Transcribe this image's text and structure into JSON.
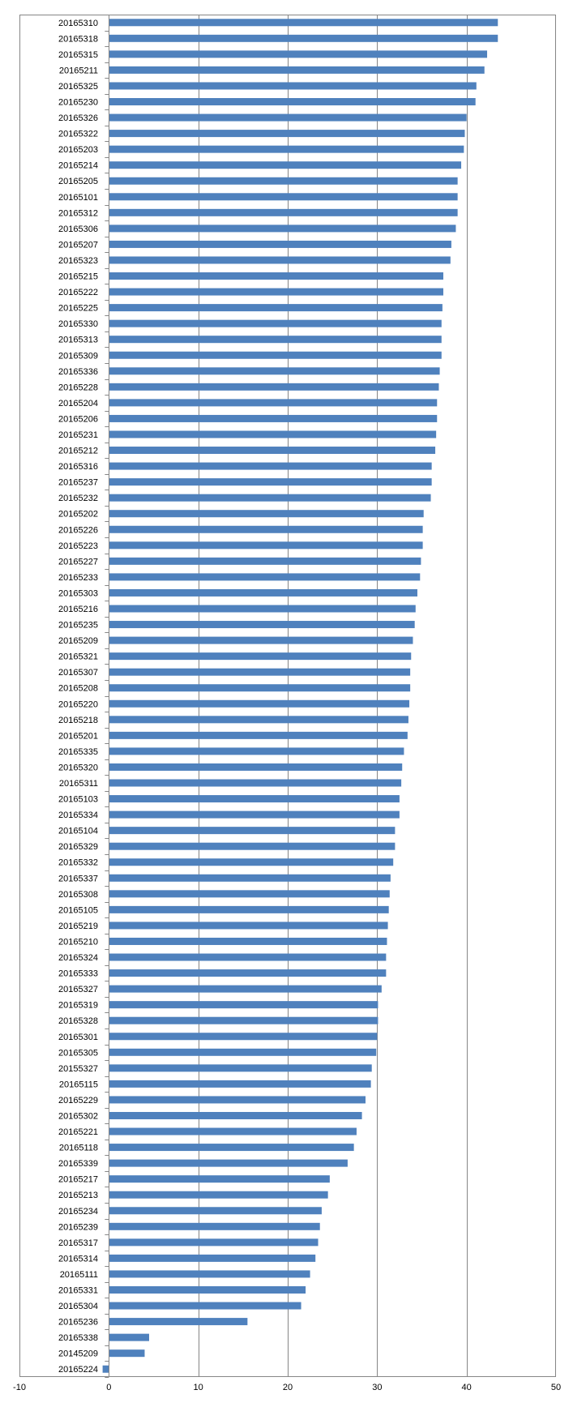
{
  "chart_data": {
    "type": "bar",
    "orientation": "horizontal",
    "categories": [
      "20165310",
      "20165318",
      "20165315",
      "20165211",
      "20165325",
      "20165230",
      "20165326",
      "20165322",
      "20165203",
      "20165214",
      "20165205",
      "20165101",
      "20165312",
      "20165306",
      "20165207",
      "20165323",
      "20165215",
      "20165222",
      "20165225",
      "20165330",
      "20165313",
      "20165309",
      "20165336",
      "20165228",
      "20165204",
      "20165206",
      "20165231",
      "20165212",
      "20165316",
      "20165237",
      "20165232",
      "20165202",
      "20165226",
      "20165223",
      "20165227",
      "20165233",
      "20165303",
      "20165216",
      "20165235",
      "20165209",
      "20165321",
      "20165307",
      "20165208",
      "20165220",
      "20165218",
      "20165201",
      "20165335",
      "20165320",
      "20165311",
      "20165103",
      "20165334",
      "20165104",
      "20165329",
      "20165332",
      "20165337",
      "20165308",
      "20165105",
      "20165219",
      "20165210",
      "20165324",
      "20165333",
      "20165327",
      "20165319",
      "20165328",
      "20165301",
      "20165305",
      "20155327",
      "20165115",
      "20165229",
      "20165302",
      "20165221",
      "20165118",
      "20165339",
      "20165217",
      "20165213",
      "20165234",
      "20165239",
      "20165317",
      "20165314",
      "20165111",
      "20165331",
      "20165304",
      "20165236",
      "20165338",
      "20145209",
      "20165224"
    ],
    "values": [
      43.5,
      43.5,
      42.3,
      42.0,
      41.1,
      41.0,
      40.0,
      39.8,
      39.7,
      39.4,
      39.0,
      39.0,
      39.0,
      38.8,
      38.3,
      38.2,
      37.4,
      37.4,
      37.3,
      37.2,
      37.2,
      37.2,
      37.0,
      36.9,
      36.7,
      36.7,
      36.6,
      36.5,
      36.1,
      36.1,
      36.0,
      35.2,
      35.1,
      35.1,
      34.9,
      34.8,
      34.5,
      34.3,
      34.2,
      34.0,
      33.8,
      33.7,
      33.7,
      33.6,
      33.5,
      33.4,
      33.0,
      32.8,
      32.7,
      32.5,
      32.5,
      32.0,
      32.0,
      31.8,
      31.5,
      31.4,
      31.3,
      31.2,
      31.1,
      31.0,
      31.0,
      30.5,
      30.1,
      30.1,
      30.0,
      29.9,
      29.4,
      29.3,
      28.7,
      28.3,
      27.7,
      27.4,
      26.7,
      24.7,
      24.5,
      23.8,
      23.6,
      23.4,
      23.1,
      22.5,
      22.0,
      21.5,
      15.5,
      4.5,
      4.0,
      -0.7
    ],
    "xlim": [
      -10,
      50
    ],
    "xticks": [
      -10,
      0,
      10,
      20,
      30,
      40,
      50
    ],
    "grid": "vertical",
    "legend": "none",
    "bar_color": "#4F81BD"
  }
}
